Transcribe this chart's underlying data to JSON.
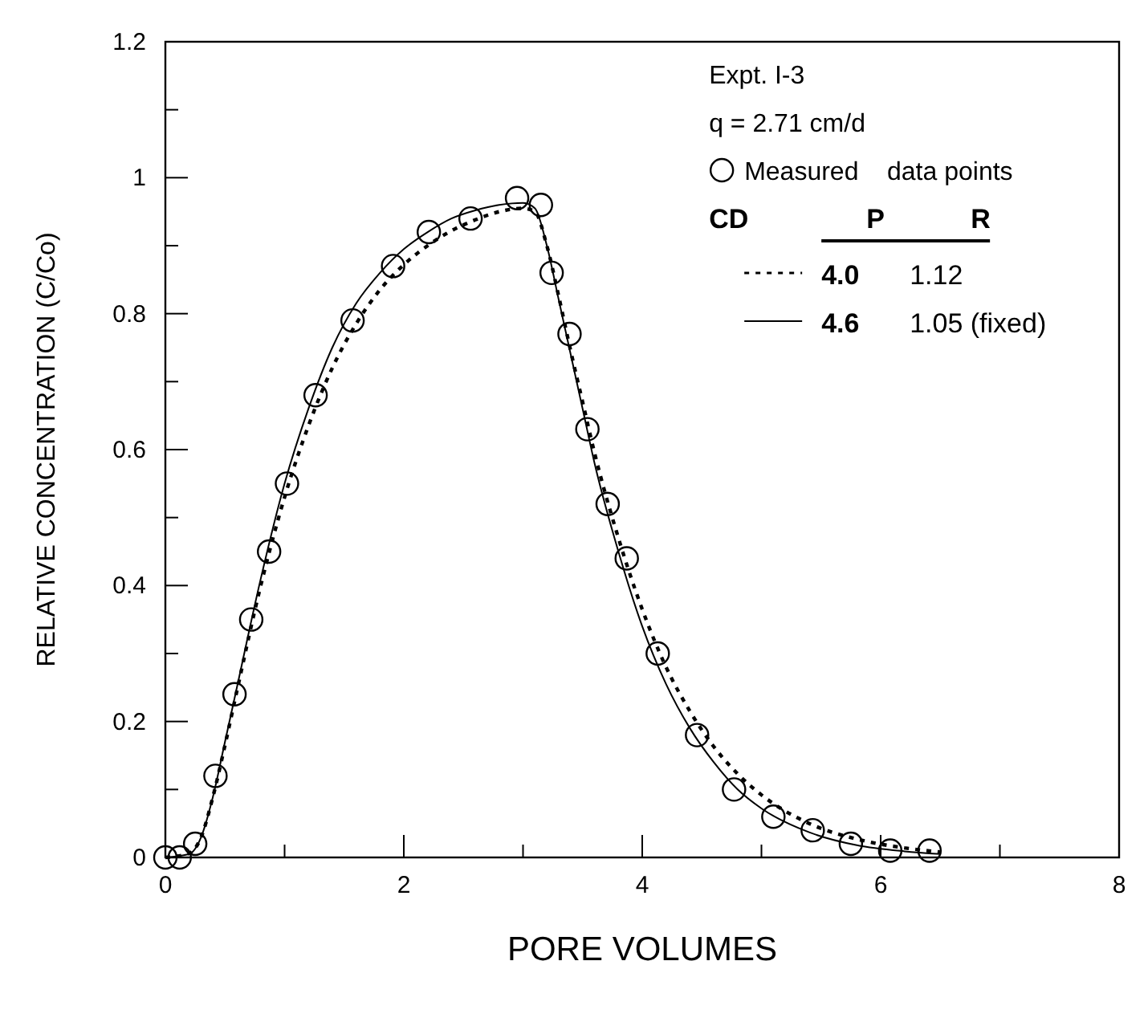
{
  "chart_data": {
    "type": "line",
    "xlabel": "PORE VOLUMES",
    "ylabel": "RELATIVE CONCENTRATION (C/Co)",
    "annotations": [
      "Expt. I-3",
      "q = 2.71 cm/d"
    ],
    "legend_title": "CD P R",
    "legend": "top right",
    "grid": false,
    "xlim": [
      0,
      8
    ],
    "xticks": [
      0,
      {
        "value": 1,
        "label": null
      },
      2,
      {
        "value": 3,
        "label": null
      },
      4,
      {
        "value": 5,
        "label": null
      },
      6,
      {
        "value": 7,
        "label": null
      },
      8
    ],
    "ylim": [
      0,
      1.2
    ],
    "yticks": [
      0,
      {
        "value": 0.1,
        "label": null
      },
      0.2,
      {
        "value": 0.3,
        "label": null
      },
      0.4,
      {
        "value": 0.5,
        "label": null
      },
      0.6,
      {
        "value": 0.7,
        "label": null
      },
      0.8,
      {
        "value": 0.9,
        "label": null
      },
      1,
      {
        "value": 1.1,
        "label": null
      },
      1.2
    ],
    "series": [
      {
        "name": "Measured    data points",
        "type": "scatter",
        "marker": "circle",
        "color": "#000000",
        "x": [
          0,
          0.12,
          0.25,
          0.42,
          0.58,
          0.72,
          0.87,
          1.02,
          1.26,
          1.57,
          1.91,
          2.21,
          2.56,
          2.95,
          3.15,
          3.24,
          3.39,
          3.54,
          3.71,
          3.87,
          4.13,
          4.46,
          4.77,
          5.1,
          5.43,
          5.75,
          6.08,
          6.41
        ],
        "values": [
          0,
          0,
          0.02,
          0.12,
          0.24,
          0.35,
          0.45,
          0.55,
          0.68,
          0.79,
          0.87,
          0.92,
          0.94,
          0.97,
          0.96,
          0.86,
          0.77,
          0.63,
          0.52,
          0.44,
          0.3,
          0.18,
          0.1,
          0.06,
          0.04,
          0.02,
          0.01,
          0.01
        ]
      },
      {
        "name": "4.0 1.12",
        "type": "line",
        "line_style": "dotted",
        "color": "#000000",
        "x": [
          0,
          0.2,
          0.3,
          0.4,
          0.5,
          0.6,
          0.8,
          1,
          1.2,
          1.4,
          1.6,
          1.8,
          2,
          2.2,
          2.4,
          2.6,
          2.8,
          3,
          3.1,
          3.2,
          3.3,
          3.4,
          3.5,
          3.6,
          3.8,
          4,
          4.2,
          4.4,
          4.6,
          4.8,
          5,
          5.4,
          5.8,
          6.2,
          6.5
        ],
        "values": [
          0,
          0.006,
          0.03,
          0.09,
          0.165,
          0.245,
          0.4,
          0.53,
          0.635,
          0.72,
          0.785,
          0.835,
          0.872,
          0.9,
          0.922,
          0.938,
          0.95,
          0.955,
          0.95,
          0.9,
          0.825,
          0.745,
          0.67,
          0.595,
          0.47,
          0.365,
          0.28,
          0.215,
          0.163,
          0.123,
          0.092,
          0.05,
          0.027,
          0.014,
          0.008
        ]
      },
      {
        "name": "4.6 1.05 (fixed)",
        "type": "line",
        "line_style": "solid",
        "color": "#000000",
        "x": [
          0,
          0.2,
          0.3,
          0.4,
          0.5,
          0.6,
          0.8,
          1,
          1.2,
          1.4,
          1.6,
          1.8,
          2,
          2.2,
          2.4,
          2.6,
          2.8,
          3,
          3.1,
          3.2,
          3.3,
          3.4,
          3.5,
          3.6,
          3.8,
          4,
          4.2,
          4.4,
          4.6,
          4.8,
          5,
          5.4,
          5.8,
          6.2,
          6.5
        ],
        "values": [
          0,
          0.005,
          0.03,
          0.09,
          0.17,
          0.25,
          0.41,
          0.55,
          0.66,
          0.75,
          0.815,
          0.86,
          0.895,
          0.92,
          0.94,
          0.952,
          0.96,
          0.963,
          0.955,
          0.9,
          0.82,
          0.74,
          0.66,
          0.58,
          0.45,
          0.34,
          0.255,
          0.19,
          0.14,
          0.1,
          0.072,
          0.037,
          0.018,
          0.009,
          0.005
        ]
      }
    ]
  }
}
